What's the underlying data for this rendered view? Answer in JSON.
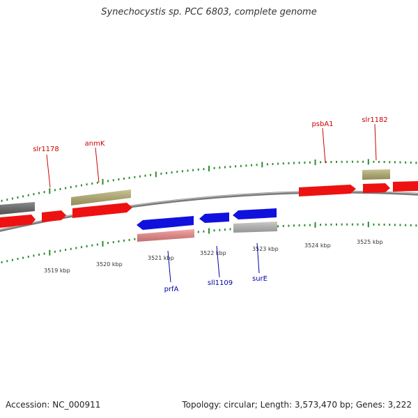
{
  "title": "Synechocystis sp. PCC 6803, complete genome",
  "footer": {
    "accession": "Accession: NC_000911",
    "stats": "Topology: circular; Length: 3,573,470 bp; Genes: 3,222"
  },
  "scale_labels": [
    "3519 kbp",
    "3520 kbp",
    "3521 kbp",
    "3522 kbp",
    "3523 kbp",
    "3524 kbp",
    "3525 kbp"
  ],
  "gene_labels": [
    {
      "name": "slr1178",
      "strand": "forward"
    },
    {
      "name": "anmK",
      "strand": "forward"
    },
    {
      "name": "psbA1",
      "strand": "forward"
    },
    {
      "name": "slr1182",
      "strand": "forward"
    },
    {
      "name": "prfA",
      "strand": "reverse"
    },
    {
      "name": "sll1109",
      "strand": "reverse"
    },
    {
      "name": "surE",
      "strand": "reverse"
    }
  ],
  "colors": {
    "cds_forward": "#ee1111",
    "cds_reverse": "#1111dd",
    "rna_forward": "#b8b070",
    "rna_reverse": "#f08a8a",
    "other_gene": "#666666",
    "other_reverse": "#bbbbbb",
    "backbone": "#888888",
    "tick": "#2e8b2e",
    "label_forward": "#cc0000",
    "label_reverse": "#0000aa"
  }
}
